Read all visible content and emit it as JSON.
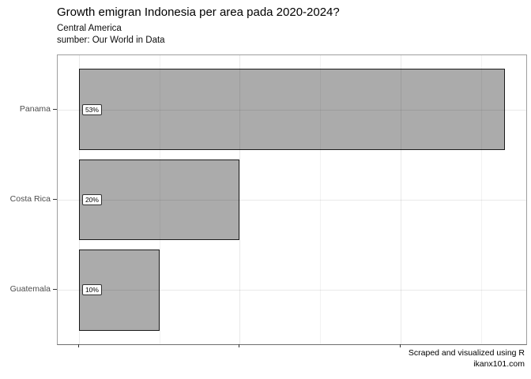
{
  "chart_data": {
    "type": "bar",
    "orientation": "horizontal",
    "title": "Growth emigran Indonesia per area pada 2020-2024?",
    "subtitle_line1": "Central America",
    "subtitle_line2": "sumber: Our World in Data",
    "caption_line1": "Scraped and visualized using R",
    "caption_line2": "ikanx101.com",
    "categories": [
      "Panama",
      "Costa Rica",
      "Guatemala"
    ],
    "values": [
      53,
      20,
      10
    ],
    "bar_labels": [
      "53%",
      "20%",
      "10%"
    ],
    "xlabel": "",
    "ylabel": "",
    "xlim": [
      -2.65,
      55.65
    ],
    "x_major_ticks": [
      0,
      20,
      40
    ],
    "x_minor_ticks": [
      10,
      30,
      50
    ],
    "x_tick_labels_shown": false,
    "grid": true,
    "legend_position": "none",
    "colors": {
      "bar_fill": "#ababab",
      "bar_stroke": "#1a1a1a",
      "panel_border": "#9e9e9e",
      "axis_line": "#6e6e6e",
      "tick": "#333333",
      "axis_text": "#4d4d4d",
      "title_text": "#000000",
      "grid_major": "rgba(0,0,0,0.085)",
      "grid_minor": "rgba(0,0,0,0.05)"
    }
  }
}
